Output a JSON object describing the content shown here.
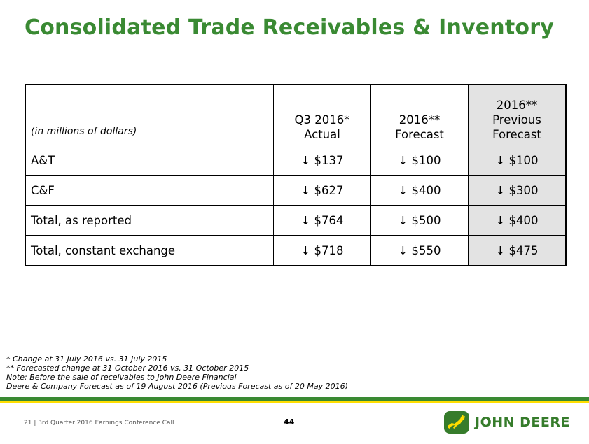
{
  "title": "Consolidated Trade Receivables & Inventory",
  "table": {
    "units_label": "(in millions of dollars)",
    "headers": [
      {
        "line1": "",
        "line2": "Q3 2016*",
        "line3": "Actual"
      },
      {
        "line1": "",
        "line2": "2016**",
        "line3": "Forecast"
      },
      {
        "line1": "2016**",
        "line2": "Previous",
        "line3": "Forecast"
      }
    ],
    "rows": [
      {
        "label": "A&T",
        "q3": "↓ $137",
        "fc": "↓ $100",
        "prev": "↓ $100"
      },
      {
        "label": "C&F",
        "q3": "↓ $627",
        "fc": "↓ $400",
        "prev": "↓ $300"
      },
      {
        "label": "Total, as reported",
        "q3": "↓ $764",
        "fc": "↓ $500",
        "prev": "↓ $400"
      },
      {
        "label": "Total, constant exchange",
        "q3": "↓ $718",
        "fc": "↓ $550",
        "prev": "↓ $475"
      }
    ]
  },
  "notes": [
    "* Change at 31 July 2016 vs. 31 July 2015",
    "** Forecasted change at 31 October 2016 vs. 31 October 2015",
    "Note:  Before the sale of receivables to John Deere Financial",
    "Deere & Company Forecast as of 19 August 2016 (Previous Forecast as of 20 May 2016)"
  ],
  "footer": {
    "left": "21  |  3rd Quarter 2016 Earnings Conference Call",
    "page_number": "44",
    "brand": "JOHN DEERE"
  },
  "colors": {
    "title": "#3a8a33",
    "brand_green": "#367c2b",
    "brand_yellow": "#ffde00",
    "prev_col_bg": "#e3e3e3"
  },
  "icons": {
    "logo": "leaping-deer-icon"
  }
}
